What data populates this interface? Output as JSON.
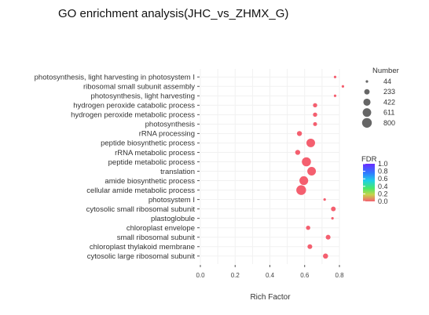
{
  "chart_data": {
    "type": "scatter",
    "title": "GO enrichment analysis(JHC_vs_ZHMX_G)",
    "xlabel": "Rich Factor",
    "ylabel": "",
    "xlim": [
      0.0,
      0.8
    ],
    "x_ticks": [
      "0.0",
      "0.2",
      "0.4",
      "0.6",
      "0.8"
    ],
    "grid": true,
    "size_legend": {
      "title": "Number",
      "values": [
        "44",
        "233",
        "422",
        "611",
        "800"
      ]
    },
    "color_legend": {
      "title": "FDR",
      "ticks": [
        "1.0",
        "0.8",
        "0.6",
        "0.4",
        "0.2",
        "0.0"
      ],
      "low_color": "#f45f6f",
      "high_color": "#6b2cff"
    },
    "points": [
      {
        "term": "photosynthesis, light harvesting in photosystem I",
        "x": 0.775,
        "size": 44,
        "fdr": 0.0
      },
      {
        "term": "ribosomal small subunit assembly",
        "x": 0.82,
        "size": 44,
        "fdr": 0.0
      },
      {
        "term": "photosynthesis, light harvesting",
        "x": 0.775,
        "size": 44,
        "fdr": 0.0
      },
      {
        "term": "hydrogen peroxide catabolic process",
        "x": 0.66,
        "size": 140,
        "fdr": 0.0
      },
      {
        "term": "hydrogen peroxide metabolic process",
        "x": 0.66,
        "size": 140,
        "fdr": 0.0
      },
      {
        "term": "photosynthesis",
        "x": 0.66,
        "size": 120,
        "fdr": 0.0
      },
      {
        "term": "rRNA processing",
        "x": 0.57,
        "size": 200,
        "fdr": 0.0
      },
      {
        "term": "peptide biosynthetic process",
        "x": 0.635,
        "size": 620,
        "fdr": 0.0
      },
      {
        "term": "rRNA metabolic process",
        "x": 0.56,
        "size": 200,
        "fdr": 0.0
      },
      {
        "term": "peptide metabolic process",
        "x": 0.61,
        "size": 690,
        "fdr": 0.0
      },
      {
        "term": "translation",
        "x": 0.64,
        "size": 620,
        "fdr": 0.0
      },
      {
        "term": "amide biosynthetic process",
        "x": 0.595,
        "size": 650,
        "fdr": 0.0
      },
      {
        "term": "cellular amide metabolic process",
        "x": 0.58,
        "size": 800,
        "fdr": 0.0
      },
      {
        "term": "photosystem I",
        "x": 0.715,
        "size": 44,
        "fdr": 0.0
      },
      {
        "term": "cytosolic small ribosomal subunit",
        "x": 0.765,
        "size": 170,
        "fdr": 0.0
      },
      {
        "term": "plastoglobule",
        "x": 0.76,
        "size": 44,
        "fdr": 0.0
      },
      {
        "term": "chloroplast envelope",
        "x": 0.62,
        "size": 140,
        "fdr": 0.0
      },
      {
        "term": "small ribosomal subunit",
        "x": 0.735,
        "size": 180,
        "fdr": 0.0
      },
      {
        "term": "chloroplast thylakoid membrane",
        "x": 0.63,
        "size": 180,
        "fdr": 0.0
      },
      {
        "term": "cytosolic large ribosomal subunit",
        "x": 0.72,
        "size": 210,
        "fdr": 0.0
      }
    ]
  }
}
